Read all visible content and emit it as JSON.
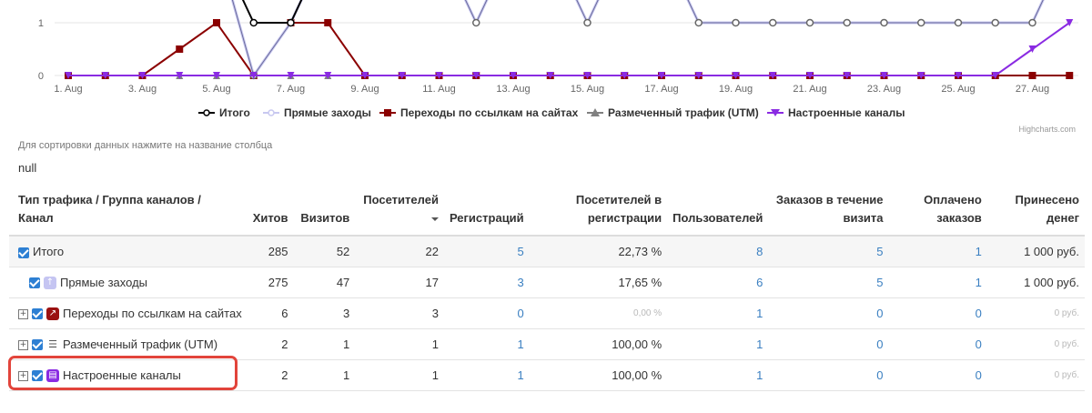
{
  "chart_data": {
    "type": "line",
    "x": [
      "1. Aug",
      "2. Aug",
      "3. Aug",
      "4. Aug",
      "5. Aug",
      "6. Aug",
      "7. Aug",
      "8. Aug",
      "9. Aug",
      "10. Aug",
      "11. Aug",
      "12. Aug",
      "13. Aug",
      "14. Aug",
      "15. Aug",
      "16. Aug",
      "17. Aug",
      "18. Aug",
      "19. Aug",
      "20. Aug",
      "21. Aug",
      "22. Aug",
      "23. Aug",
      "24. Aug",
      "25. Aug",
      "26. Aug",
      "27. Aug",
      "28. Aug"
    ],
    "x_tick_labels": [
      "1. Aug",
      "3. Aug",
      "5. Aug",
      "7. Aug",
      "9. Aug",
      "11. Aug",
      "13. Aug",
      "15. Aug",
      "17. Aug",
      "19. Aug",
      "21. Aug",
      "23. Aug",
      "25. Aug",
      "27. Aug"
    ],
    "y_tick_labels": [
      "0",
      "1"
    ],
    "y_visible_range": [
      0,
      2.5
    ],
    "series": [
      {
        "name": "Итого",
        "color": "#000000",
        "values": [
          null,
          null,
          null,
          null,
          2.5,
          1,
          1,
          2.5,
          null,
          null,
          null,
          null,
          null,
          null,
          null,
          null,
          null,
          null,
          null,
          null,
          null,
          null,
          null,
          null,
          null,
          null,
          2.5,
          null
        ]
      },
      {
        "name": "Прямые заходы",
        "color": "#c8c8f0",
        "values": [
          null,
          null,
          null,
          null,
          2.5,
          0,
          1,
          2.5,
          2.5,
          2.5,
          2.5,
          1,
          2.5,
          2.5,
          1,
          2.5,
          2.5,
          1,
          1,
          1,
          1,
          1,
          1,
          1,
          1,
          1,
          1,
          2.5
        ]
      },
      {
        "name": "Переходы по ссылкам на сайтах",
        "color": "#8b0000",
        "values": [
          0,
          0,
          0,
          0.5,
          1,
          0,
          1,
          1,
          0,
          0,
          0,
          0,
          0,
          0,
          0,
          0,
          0,
          0,
          0,
          0,
          0,
          0,
          0,
          0,
          0,
          0,
          0,
          0
        ]
      },
      {
        "name": "Размеченный трафик (UTM)",
        "color": "#808080",
        "values": [
          0,
          0,
          0,
          0,
          0,
          0,
          0,
          0,
          0,
          0,
          0,
          0,
          0,
          0,
          0,
          0,
          0,
          0,
          0,
          0,
          0,
          0,
          0,
          0,
          0,
          0,
          0,
          0
        ]
      },
      {
        "name": "Настроенные каналы",
        "color": "#8a2be2",
        "values": [
          0,
          0,
          0,
          0,
          0,
          0,
          0,
          0,
          0,
          0,
          0,
          0,
          0,
          0,
          0,
          0,
          0,
          0,
          0,
          0,
          0,
          0,
          0,
          0,
          0,
          0,
          0.5,
          1
        ]
      }
    ]
  },
  "credits": "Highcharts.com",
  "hint": "Для сортировки данных нажмите на название столбца",
  "null_text": "null",
  "table": {
    "headers": {
      "col0": [
        "Тип трафика / Группа каналов /",
        "Канал"
      ],
      "col1": "Хитов",
      "col2": "Визитов",
      "col3": "Посетителей",
      "col4": "Регистраций",
      "col5": [
        "Посетителей в",
        "регистрации"
      ],
      "col6": "Пользователей",
      "col7": [
        "Заказов в течение",
        "визита"
      ],
      "col8": [
        "Оплачено",
        "заказов"
      ],
      "col9": [
        "Принесено",
        "денег"
      ]
    },
    "rows": [
      {
        "label": "Итого",
        "hits": "285",
        "visits": "52",
        "visitors": "22",
        "regs": "5",
        "conv": "22,73 %",
        "users": "8",
        "orders": "5",
        "paid": "1",
        "money": "1 000 руб."
      },
      {
        "label": "Прямые заходы",
        "hits": "275",
        "visits": "47",
        "visitors": "17",
        "regs": "3",
        "conv": "17,65 %",
        "users": "6",
        "orders": "5",
        "paid": "1",
        "money": "1 000 руб."
      },
      {
        "label": "Переходы по ссылкам на сайтах",
        "hits": "6",
        "visits": "3",
        "visitors": "3",
        "regs": "0",
        "conv": "0,00 %",
        "users": "1",
        "orders": "0",
        "paid": "0",
        "money": "0 руб."
      },
      {
        "label": "Размеченный трафик (UTM)",
        "hits": "2",
        "visits": "1",
        "visitors": "1",
        "regs": "1",
        "conv": "100,00 %",
        "users": "1",
        "orders": "0",
        "paid": "0",
        "money": "0 руб."
      },
      {
        "label": "Настроенные каналы",
        "hits": "2",
        "visits": "1",
        "visitors": "1",
        "regs": "1",
        "conv": "100,00 %",
        "users": "1",
        "orders": "0",
        "paid": "0",
        "money": "0 руб."
      }
    ]
  }
}
